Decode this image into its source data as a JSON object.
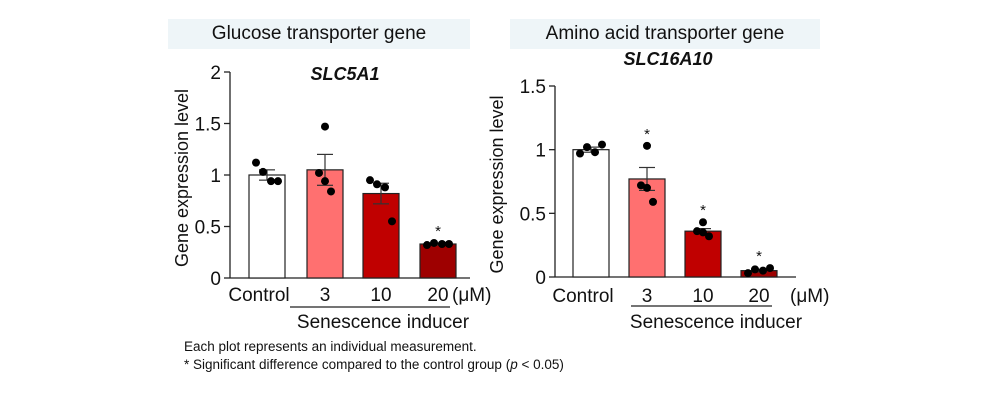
{
  "chart_data": [
    {
      "type": "bar",
      "panel_title": "Glucose transporter gene",
      "title": "SLC5A1",
      "ylabel": "Gene expression level",
      "xlabel": "Senescence inducer",
      "unit_label": "(μM)",
      "ylim": [
        0,
        2
      ],
      "yticks": [
        0,
        0.5,
        1,
        1.5,
        2
      ],
      "ytick_labels": [
        "0",
        "0.5",
        "1",
        "1.5",
        "2"
      ],
      "categories": [
        "Control",
        "3",
        "10",
        "20"
      ],
      "values": [
        1.0,
        1.05,
        0.82,
        0.33
      ],
      "sem": [
        0.05,
        0.15,
        0.1,
        0.01
      ],
      "points": [
        [
          1.12,
          1.03,
          0.94,
          0.94
        ],
        [
          1.47,
          1.02,
          0.94,
          0.84
        ],
        [
          0.95,
          0.91,
          0.88,
          0.55
        ],
        [
          0.32,
          0.34,
          0.33,
          0.33
        ]
      ],
      "significant": [
        false,
        false,
        false,
        true
      ],
      "colors": [
        "#ffffff",
        "#ff7070",
        "#c00000",
        "#9e0000"
      ]
    },
    {
      "type": "bar",
      "panel_title": "Amino acid transporter gene",
      "title": "SLC16A10",
      "ylabel": "Gene expression level",
      "xlabel": "Senescence inducer",
      "unit_label": "(μM)",
      "ylim": [
        0,
        1.5
      ],
      "yticks": [
        0,
        0.5,
        1,
        1.5
      ],
      "ytick_labels": [
        "0",
        "0.5",
        "1",
        "1.5"
      ],
      "categories": [
        "Control",
        "3",
        "10",
        "20"
      ],
      "values": [
        1.0,
        0.77,
        0.36,
        0.05
      ],
      "sem": [
        0.02,
        0.09,
        0.02,
        0.01
      ],
      "points": [
        [
          0.97,
          1.02,
          0.98,
          1.04
        ],
        [
          1.03,
          0.72,
          0.7,
          0.59
        ],
        [
          0.43,
          0.36,
          0.35,
          0.32
        ],
        [
          0.03,
          0.06,
          0.05,
          0.07
        ]
      ],
      "significant": [
        false,
        true,
        true,
        true
      ],
      "colors": [
        "#ffffff",
        "#ff7070",
        "#c00000",
        "#9e0000"
      ]
    }
  ],
  "notes": {
    "line1": "Each plot represents an individual measurement.",
    "line2_prefix": "* Significant difference compared to the control group (",
    "line2_p": "p",
    "line2_suffix": " < 0.05)"
  },
  "significance_marker": "*"
}
